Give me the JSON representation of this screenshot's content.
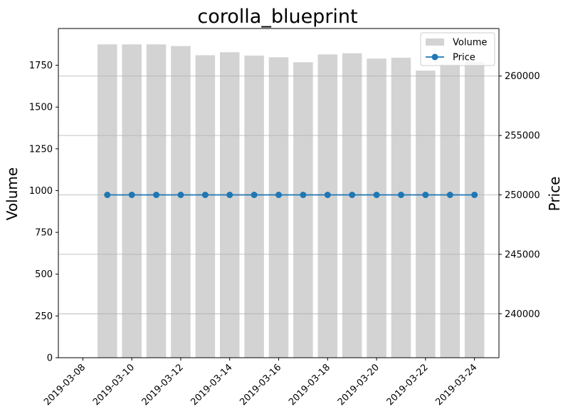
{
  "chart_data": {
    "type": "bar",
    "title": "corolla_blueprint",
    "xlabel": "",
    "ylabel": "Volume",
    "y2label": "Price",
    "x_ticks": [
      "2019-03-08",
      "2019-03-10",
      "2019-03-12",
      "2019-03-14",
      "2019-03-16",
      "2019-03-18",
      "2019-03-20",
      "2019-03-22",
      "2019-03-24"
    ],
    "y_ticks": [
      "0",
      "250",
      "500",
      "750",
      "1000",
      "1250",
      "1500",
      "1750"
    ],
    "y2_ticks": [
      "240000",
      "245000",
      "250000",
      "255000",
      "260000"
    ],
    "xlim": [
      "2019-03-07",
      "2019-03-25"
    ],
    "ylim": [
      0,
      1970
    ],
    "y2lim": [
      236300,
      264000
    ],
    "grid": "horizontal on right axis",
    "legend_placement": "top-right",
    "dates": [
      "2019-03-09",
      "2019-03-10",
      "2019-03-11",
      "2019-03-12",
      "2019-03-13",
      "2019-03-14",
      "2019-03-15",
      "2019-03-16",
      "2019-03-17",
      "2019-03-18",
      "2019-03-19",
      "2019-03-20",
      "2019-03-21",
      "2019-03-22",
      "2019-03-23",
      "2019-03-24"
    ],
    "series": [
      {
        "name": "Volume",
        "kind": "bar",
        "axis": "left",
        "color": "#d3d3d3",
        "values": [
          1875,
          1875,
          1875,
          1865,
          1810,
          1828,
          1808,
          1798,
          1768,
          1815,
          1822,
          1790,
          1795,
          1718,
          1755,
          1770
        ]
      },
      {
        "name": "Price",
        "kind": "line",
        "axis": "right",
        "color": "#1f77b4",
        "marker": "circle",
        "values": [
          250000,
          250000,
          250000,
          250000,
          250000,
          250000,
          250000,
          250000,
          250000,
          250000,
          250000,
          250000,
          250000,
          250000,
          250000,
          250000
        ]
      }
    ]
  }
}
